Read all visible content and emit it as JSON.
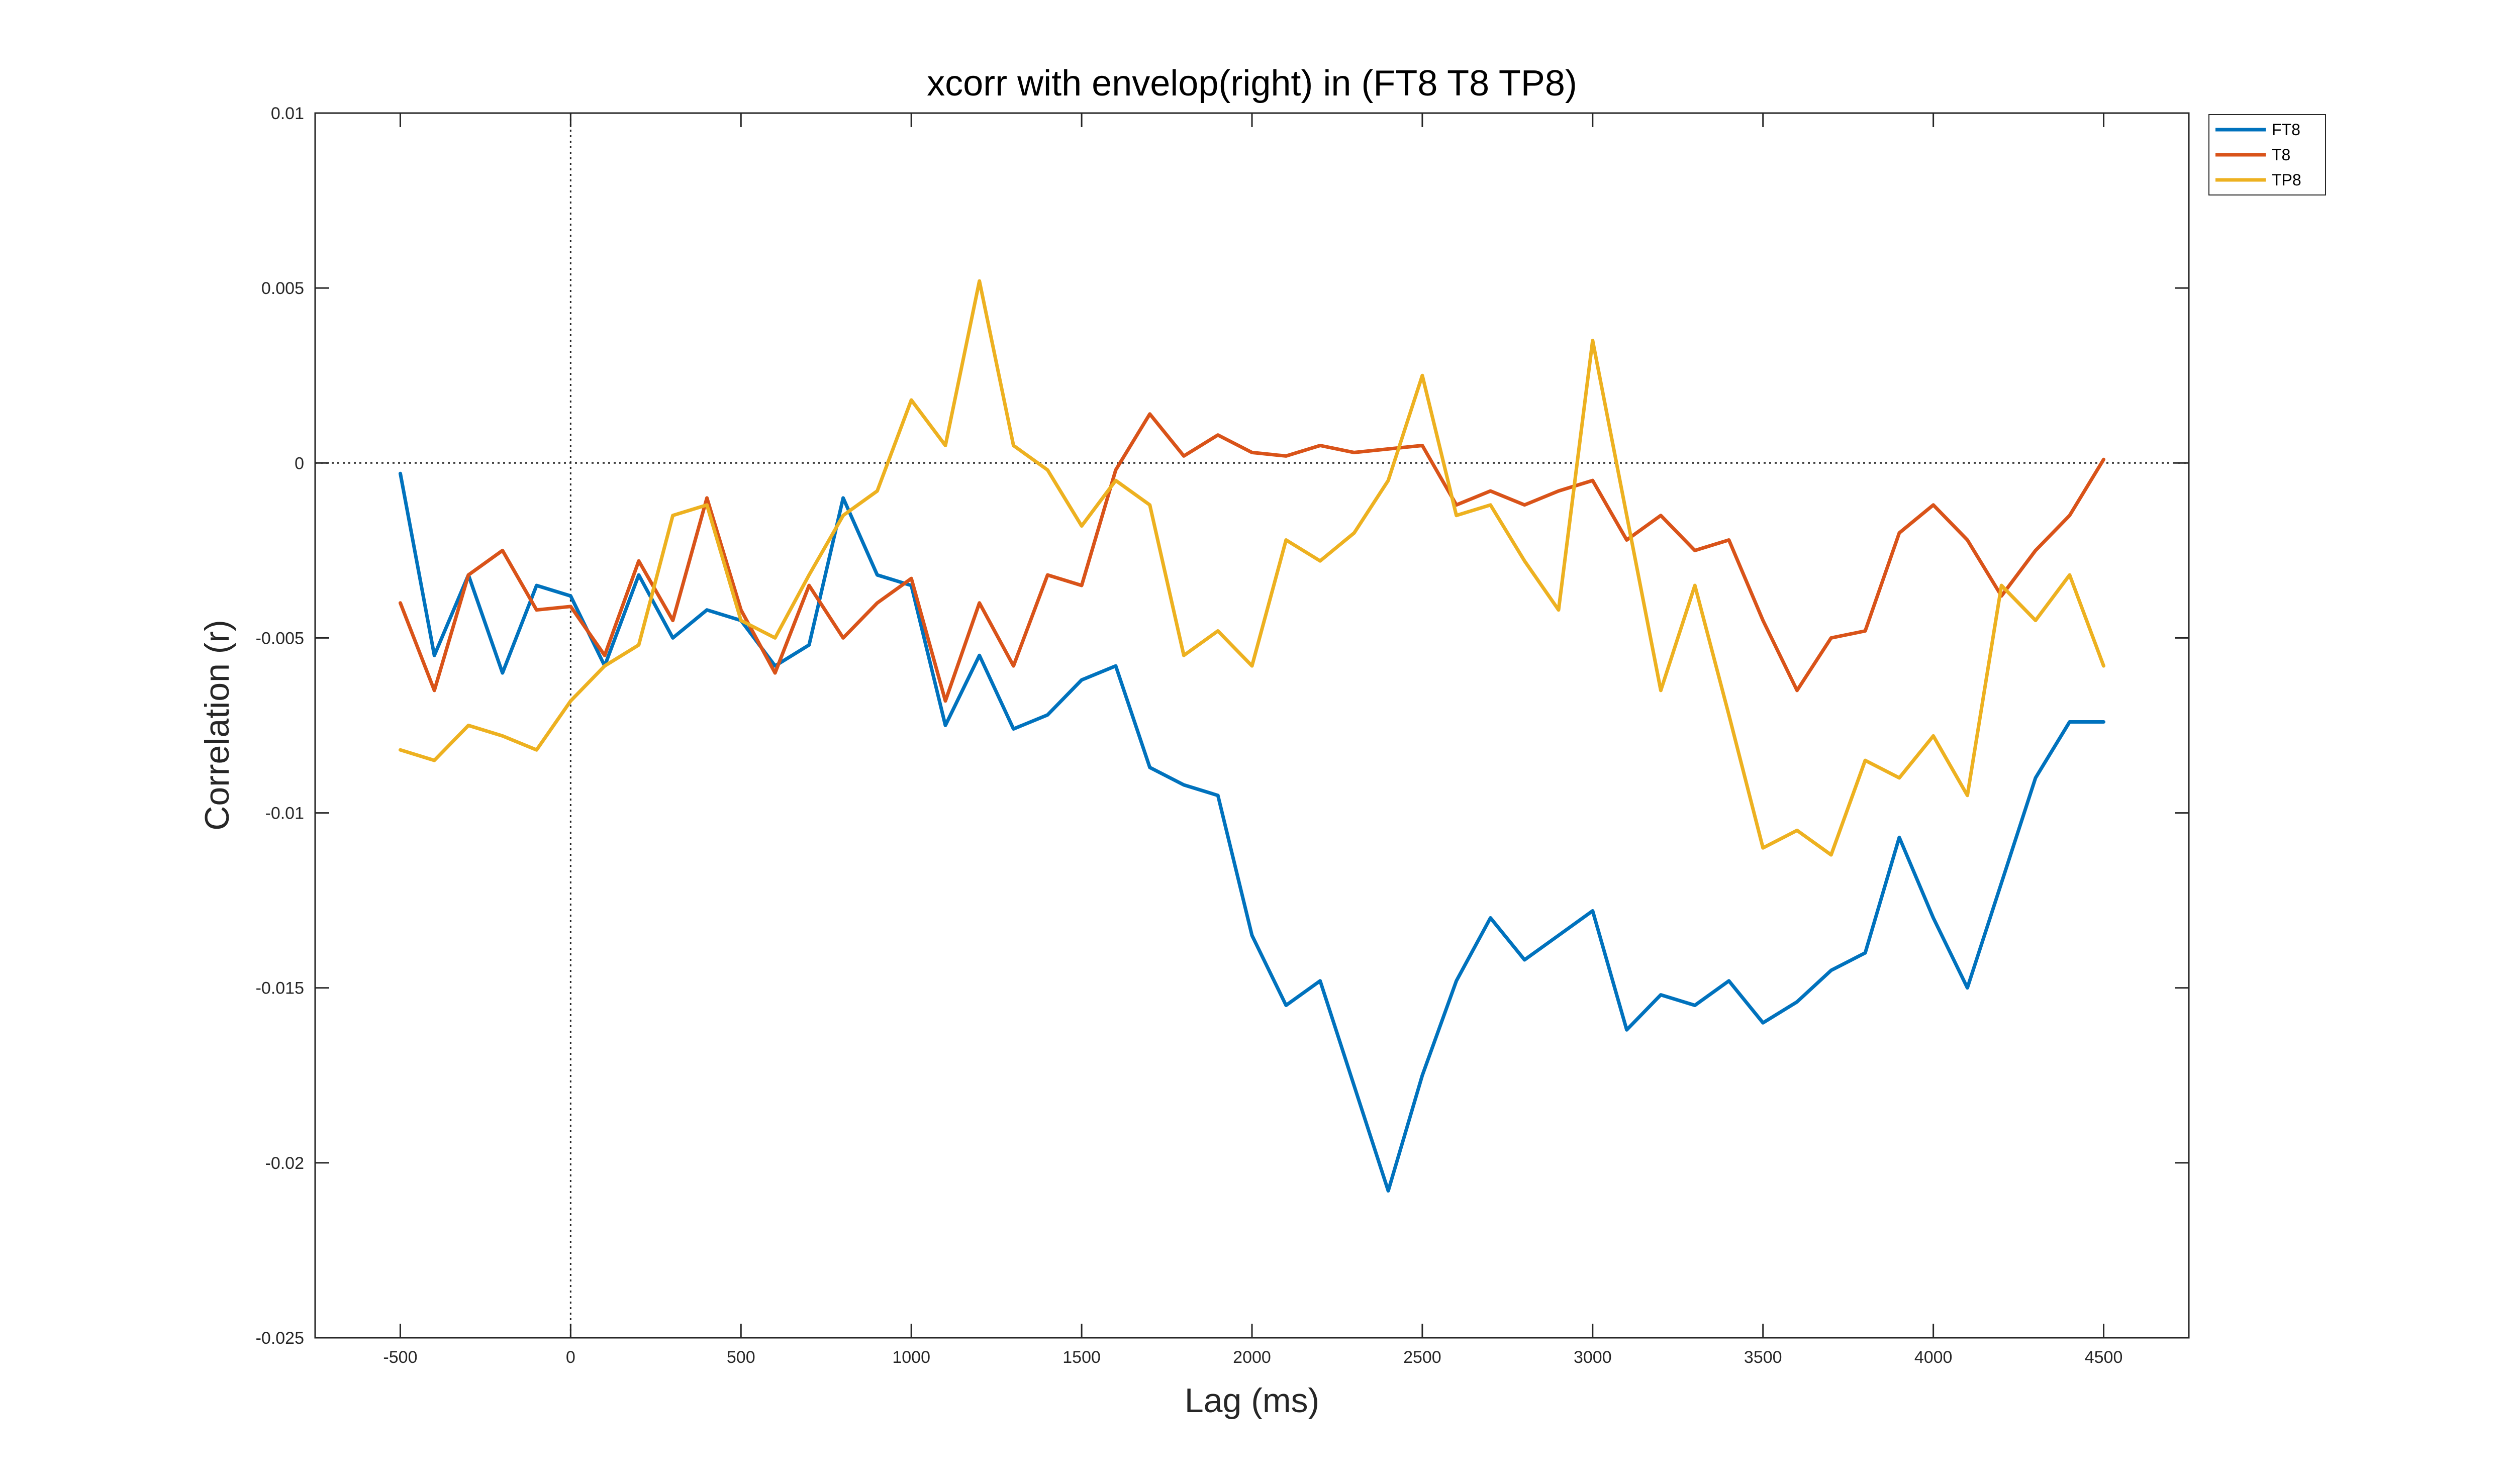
{
  "chart_data": {
    "type": "line",
    "title": "xcorr with envelop(right) in (FT8 T8 TP8)",
    "xlabel": "Lag (ms)",
    "ylabel": "Correlation (r)",
    "xlim": [
      -750,
      4750
    ],
    "ylim": [
      -0.025,
      0.01
    ],
    "x_ticks": [
      -500,
      0,
      500,
      1000,
      1500,
      2000,
      2500,
      3000,
      3500,
      4000,
      4500
    ],
    "x_tick_labels": [
      "-500",
      "0",
      "500",
      "1000",
      "1500",
      "2000",
      "2500",
      "3000",
      "3500",
      "4000",
      "4500"
    ],
    "y_ticks": [
      -0.025,
      -0.02,
      -0.015,
      -0.01,
      -0.005,
      0,
      0.005,
      0.01
    ],
    "y_tick_labels": [
      "-0.025",
      "-0.02",
      "-0.015",
      "-0.01",
      "-0.005",
      "0",
      "0.005",
      "0.01"
    ],
    "reference_lines": {
      "horizontal_y": 0,
      "vertical_x": 0,
      "style": "dotted"
    },
    "grid": false,
    "legend_position": "outside-top-right",
    "x": [
      -500,
      -400,
      -300,
      -200,
      -100,
      0,
      100,
      200,
      300,
      400,
      500,
      600,
      700,
      800,
      900,
      1000,
      1100,
      1200,
      1300,
      1400,
      1500,
      1600,
      1700,
      1800,
      1900,
      2000,
      2100,
      2200,
      2300,
      2400,
      2500,
      2600,
      2700,
      2800,
      2900,
      3000,
      3100,
      3200,
      3300,
      3400,
      3500,
      3600,
      3700,
      3800,
      3900,
      4000,
      4100,
      4200,
      4300,
      4400,
      4500
    ],
    "series": [
      {
        "name": "FT8",
        "color": "#0072BD",
        "values": [
          -0.0003,
          -0.0055,
          -0.0032,
          -0.006,
          -0.0035,
          -0.0038,
          -0.0058,
          -0.0032,
          -0.005,
          -0.0042,
          -0.0045,
          -0.0058,
          -0.0052,
          -0.001,
          -0.0032,
          -0.0035,
          -0.0075,
          -0.0055,
          -0.0076,
          -0.0072,
          -0.0062,
          -0.0058,
          -0.0087,
          -0.0092,
          -0.0095,
          -0.0135,
          -0.0155,
          -0.0148,
          -0.0178,
          -0.0208,
          -0.0175,
          -0.0148,
          -0.013,
          -0.0142,
          -0.0135,
          -0.0128,
          -0.0162,
          -0.0152,
          -0.0155,
          -0.0148,
          -0.016,
          -0.0154,
          -0.0145,
          -0.014,
          -0.0107,
          -0.013,
          -0.015,
          -0.012,
          -0.009,
          -0.0074,
          -0.0074
        ]
      },
      {
        "name": "T8",
        "color": "#D95319",
        "values": [
          -0.004,
          -0.0065,
          -0.0032,
          -0.0025,
          -0.0042,
          -0.0041,
          -0.0055,
          -0.0028,
          -0.0045,
          -0.001,
          -0.0042,
          -0.006,
          -0.0035,
          -0.005,
          -0.004,
          -0.0033,
          -0.0068,
          -0.004,
          -0.0058,
          -0.0032,
          -0.0035,
          -0.0002,
          0.0014,
          0.0002,
          0.0008,
          0.0003,
          0.0002,
          0.0005,
          0.0003,
          0.0004,
          0.0005,
          -0.0012,
          -0.0008,
          -0.0012,
          -0.0008,
          -0.0005,
          -0.0022,
          -0.0015,
          -0.0025,
          -0.0022,
          -0.0045,
          -0.0065,
          -0.005,
          -0.0048,
          -0.002,
          -0.0012,
          -0.0022,
          -0.0038,
          -0.0025,
          -0.0015,
          0.0001
        ]
      },
      {
        "name": "TP8",
        "color": "#EDB120",
        "values": [
          -0.0082,
          -0.0085,
          -0.0075,
          -0.0078,
          -0.0082,
          -0.0068,
          -0.0058,
          -0.0052,
          -0.0015,
          -0.0012,
          -0.0045,
          -0.005,
          -0.0032,
          -0.0015,
          -0.0008,
          0.0018,
          0.0005,
          0.0052,
          0.0005,
          -0.0002,
          -0.0018,
          -0.0005,
          -0.0012,
          -0.0055,
          -0.0048,
          -0.0058,
          -0.0022,
          -0.0028,
          -0.002,
          -0.0005,
          0.0025,
          -0.0015,
          -0.0012,
          -0.0028,
          -0.0042,
          0.0035,
          -0.0015,
          -0.0065,
          -0.0035,
          -0.0072,
          -0.011,
          -0.0105,
          -0.0112,
          -0.0085,
          -0.009,
          -0.0078,
          -0.0095,
          -0.0035,
          -0.0045,
          -0.0032,
          -0.0058
        ]
      }
    ]
  }
}
